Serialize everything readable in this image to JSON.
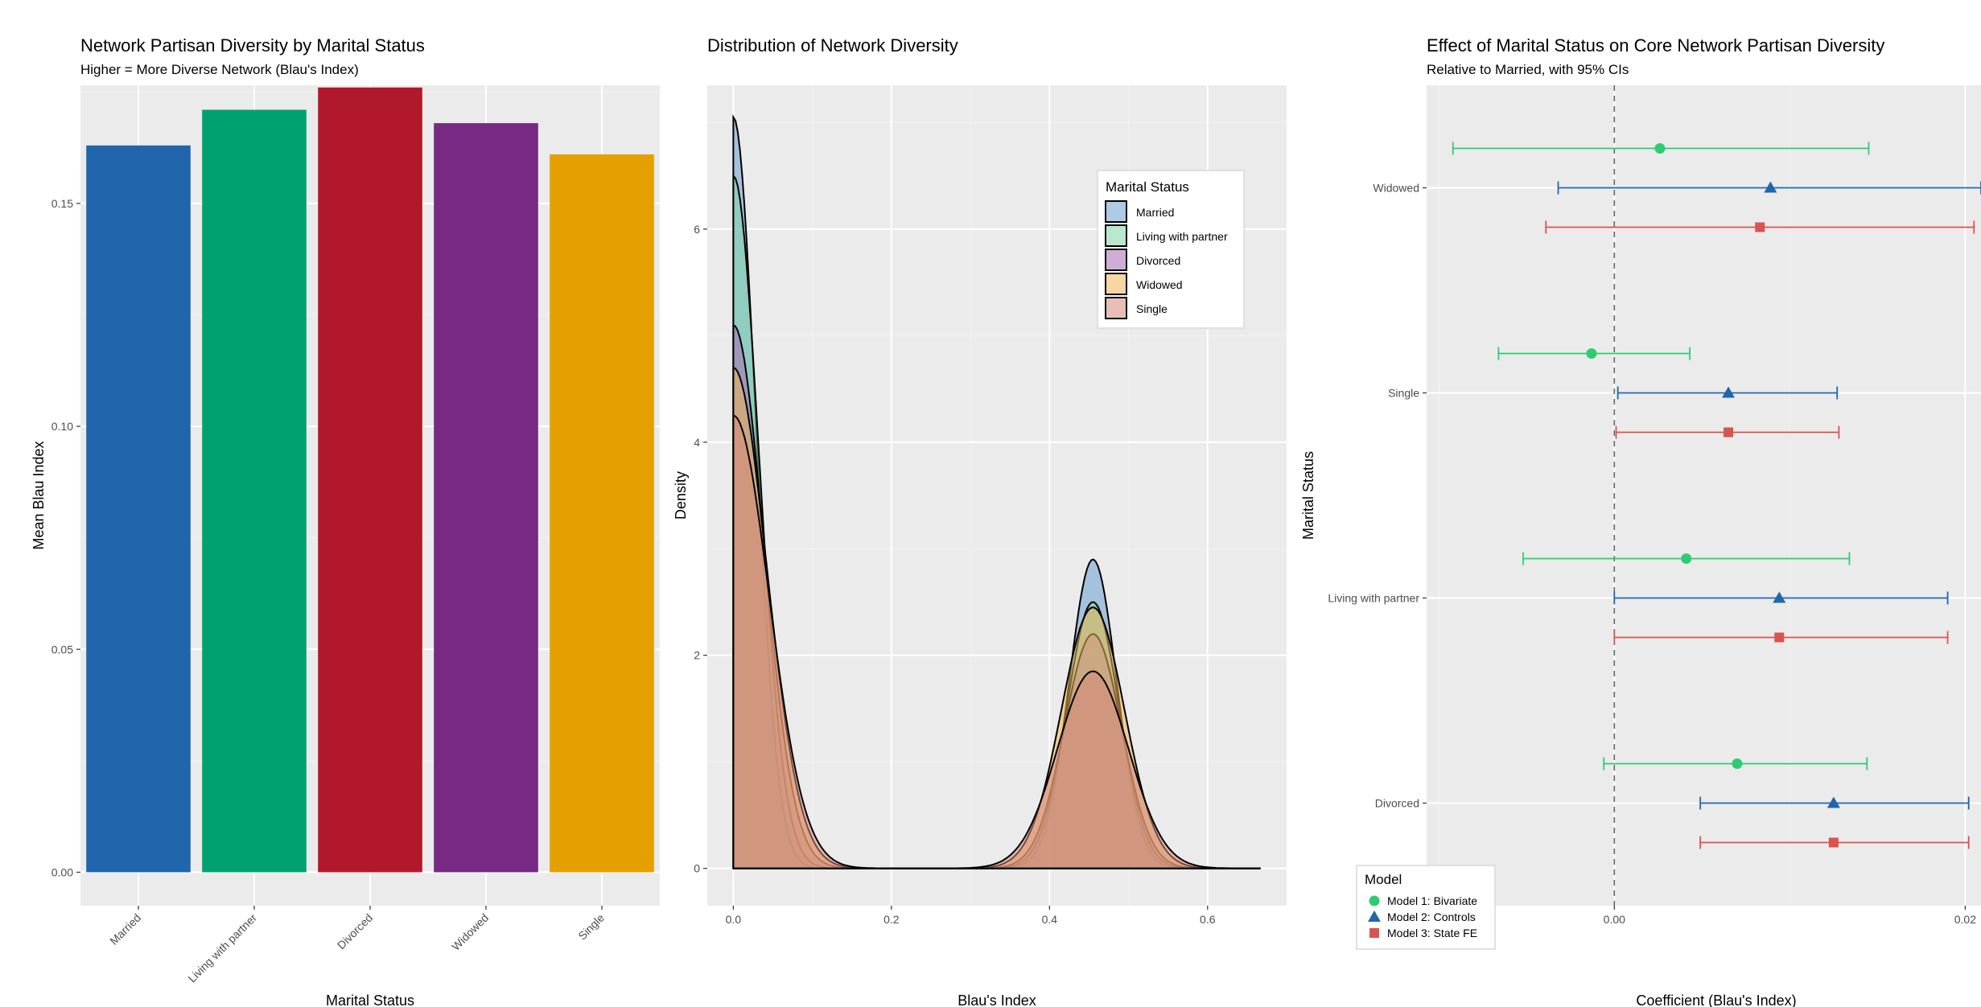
{
  "chart_data": [
    {
      "type": "bar",
      "title": "Network Partisan Diversity by Marital Status",
      "subtitle": "Higher = More Diverse Network (Blau's Index)",
      "xlabel": "Marital Status",
      "ylabel": "Mean Blau Index",
      "categories": [
        "Married",
        "Living with partner",
        "Divorced",
        "Widowed",
        "Single"
      ],
      "values": [
        0.163,
        0.171,
        0.176,
        0.168,
        0.161
      ],
      "colors": [
        "#2166ac",
        "#00a170",
        "#b2182b",
        "#762a83",
        "#e69f00"
      ],
      "yticks": [
        "0.00",
        "0.05",
        "0.10",
        "0.15"
      ],
      "ylim": [
        -0.0075,
        0.1765
      ],
      "grid": true
    },
    {
      "type": "area",
      "title": "Distribution of Network Diversity",
      "xlabel": "Blau's Index",
      "ylabel": "Density",
      "xticks": [
        "0.0",
        "0.2",
        "0.4",
        "0.6"
      ],
      "yticks": [
        "0",
        "2",
        "4",
        "6"
      ],
      "xlim": [
        -0.033,
        0.7
      ],
      "ylim": [
        -0.35,
        7.35
      ],
      "legend_title": "Marital Status",
      "legend_position": "top-right",
      "series": [
        {
          "name": "Married",
          "color": "#6a9fd1",
          "peak0": 7.05,
          "w0": 0.028,
          "peak1": 2.9,
          "w1": 0.03
        },
        {
          "name": "Living with partner",
          "color": "#7fd6a6",
          "peak0": 6.5,
          "w0": 0.032,
          "peak1": 2.5,
          "w1": 0.033
        },
        {
          "name": "Divorced",
          "color": "#a86cb5",
          "peak0": 5.1,
          "w0": 0.038,
          "peak1": 2.2,
          "w1": 0.036
        },
        {
          "name": "Widowed",
          "color": "#f0b455",
          "peak0": 4.7,
          "w0": 0.042,
          "peak1": 2.45,
          "w1": 0.04
        },
        {
          "name": "Single",
          "color": "#d68a7c",
          "peak0": 4.25,
          "w0": 0.045,
          "peak1": 1.85,
          "w1": 0.045
        }
      ]
    },
    {
      "type": "scatter",
      "title": "Effect of Marital Status on Core Network Partisan Diversity",
      "subtitle": "Relative to Married, with 95% CIs",
      "xlabel": "Coefficient (Blau's Index)",
      "ylabel": "Marital Status",
      "categories": [
        "Widowed",
        "Single",
        "Living with partner",
        "Divorced"
      ],
      "xticks": [
        "0.00",
        "0.02"
      ],
      "xlim": [
        -0.0107,
        0.0209
      ],
      "reference_line": 0,
      "legend_title": "Model",
      "legend_position": "bottom-left",
      "series": [
        {
          "name": "Model 1: Bivariate",
          "color": "#2ecc71",
          "shape": "circle",
          "points": [
            {
              "category": "Widowed",
              "estimate": 0.0026,
              "low": -0.0092,
              "high": 0.0145
            },
            {
              "category": "Single",
              "estimate": -0.0013,
              "low": -0.0066,
              "high": 0.0043
            },
            {
              "category": "Living with partner",
              "estimate": 0.0041,
              "low": -0.0052,
              "high": 0.0134
            },
            {
              "category": "Divorced",
              "estimate": 0.007,
              "low": -0.0006,
              "high": 0.0144
            }
          ]
        },
        {
          "name": "Model 2: Controls",
          "color": "#2166ac",
          "shape": "triangle",
          "points": [
            {
              "category": "Widowed",
              "estimate": 0.0089,
              "low": -0.0032,
              "high": 0.0209
            },
            {
              "category": "Single",
              "estimate": 0.0065,
              "low": 0.0002,
              "high": 0.0127
            },
            {
              "category": "Living with partner",
              "estimate": 0.0094,
              "low": 0.0,
              "high": 0.019
            },
            {
              "category": "Divorced",
              "estimate": 0.0125,
              "low": 0.0049,
              "high": 0.0202
            }
          ]
        },
        {
          "name": "Model 3: State FE",
          "color": "#d9534f",
          "shape": "square",
          "points": [
            {
              "category": "Widowed",
              "estimate": 0.0083,
              "low": -0.0039,
              "high": 0.0205
            },
            {
              "category": "Single",
              "estimate": 0.0065,
              "low": 0.0001,
              "high": 0.0128
            },
            {
              "category": "Living with partner",
              "estimate": 0.0094,
              "low": 0.0,
              "high": 0.019
            },
            {
              "category": "Divorced",
              "estimate": 0.0125,
              "low": 0.0049,
              "high": 0.0202
            }
          ]
        }
      ]
    }
  ]
}
